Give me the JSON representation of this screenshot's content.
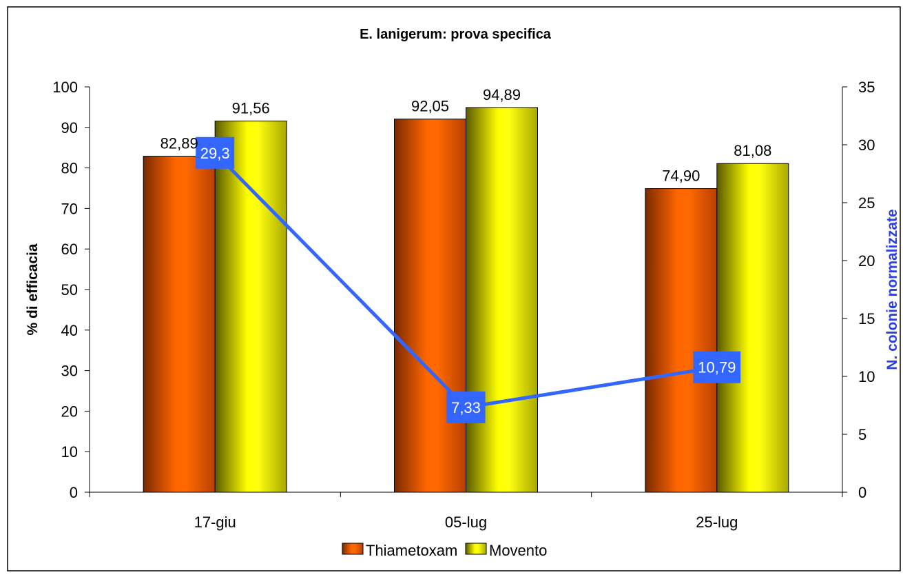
{
  "chart_data": {
    "type": "bar",
    "title": "E. lanigerum: prova specifica",
    "categories": [
      "17-giu",
      "05-lug",
      "25-lug"
    ],
    "ylabel": "% di efficacia",
    "y2label": "N. colonie normalizzate",
    "ylim": [
      0,
      100
    ],
    "y2lim": [
      0,
      35
    ],
    "yticks": [
      "0",
      "10",
      "20",
      "30",
      "40",
      "50",
      "60",
      "70",
      "80",
      "90",
      "100"
    ],
    "y2ticks": [
      "0",
      "5",
      "10",
      "15",
      "20",
      "25",
      "30",
      "35"
    ],
    "series": [
      {
        "name": "Thiametoxam",
        "type": "bar",
        "axis": "left",
        "values": [
          82.89,
          92.05,
          74.9
        ],
        "labels": [
          "82,89",
          "92,05",
          "74,90"
        ],
        "color": "#ff6600"
      },
      {
        "name": "Movento",
        "type": "bar",
        "axis": "left",
        "values": [
          91.56,
          94.89,
          81.08
        ],
        "labels": [
          "91,56",
          "94,89",
          "81,08"
        ],
        "color": "#ffff00"
      },
      {
        "type": "line",
        "axis": "right",
        "values": [
          29.3,
          7.33,
          10.79
        ],
        "labels": [
          "29,3",
          "7,33",
          "10,79"
        ],
        "color": "#3366ff"
      }
    ],
    "legend": {
      "position": "bottom",
      "entries": [
        "Thiametoxam",
        "Movento"
      ]
    },
    "grid": false
  }
}
